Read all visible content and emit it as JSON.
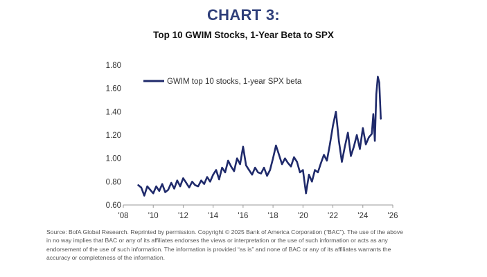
{
  "heading": "CHART 3:",
  "heading_color": "#2f3f7a",
  "source_note": "Source: BofA Global Research. Reprinted by permission. Copyright © 2025 Bank of America Corporation (“BAC”). The use of the above in no way implies that BAC or any of its affiliates endorses the views or interpretation or the use of such information or acts as any endorsement of the use of such information. The information is provided “as is” and none of BAC or any of its affiliates warrants the accuracy or completeness of the information.",
  "chart_data": {
    "type": "line",
    "title": "Top 10 GWIM Stocks, 1-Year Beta to SPX",
    "xlabel": "",
    "ylabel": "",
    "xlim": [
      2008,
      2026
    ],
    "ylim": [
      0.6,
      1.8
    ],
    "x_ticks": [
      "'08",
      "'10",
      "'12",
      "'14",
      "'16",
      "'18",
      "'20",
      "'22",
      "'24",
      "'26"
    ],
    "y_ticks": [
      "0.60",
      "0.80",
      "1.00",
      "1.20",
      "1.40",
      "1.60",
      "1.80"
    ],
    "grid": false,
    "legend_position": "top-left",
    "series": [
      {
        "name": "GWIM top 10 stocks, 1-year SPX beta",
        "color": "#1f2a6b",
        "x": [
          2009.0,
          2009.2,
          2009.4,
          2009.6,
          2009.8,
          2010.0,
          2010.2,
          2010.4,
          2010.6,
          2010.8,
          2011.0,
          2011.2,
          2011.4,
          2011.6,
          2011.8,
          2012.0,
          2012.2,
          2012.4,
          2012.6,
          2012.8,
          2013.0,
          2013.2,
          2013.4,
          2013.6,
          2013.8,
          2014.0,
          2014.2,
          2014.4,
          2014.6,
          2014.8,
          2015.0,
          2015.2,
          2015.4,
          2015.6,
          2015.8,
          2016.0,
          2016.2,
          2016.4,
          2016.6,
          2016.8,
          2017.0,
          2017.2,
          2017.4,
          2017.6,
          2017.8,
          2018.0,
          2018.2,
          2018.4,
          2018.6,
          2018.8,
          2019.0,
          2019.2,
          2019.4,
          2019.6,
          2019.8,
          2020.0,
          2020.2,
          2020.4,
          2020.6,
          2020.8,
          2021.0,
          2021.2,
          2021.4,
          2021.6,
          2021.8,
          2022.0,
          2022.2,
          2022.4,
          2022.6,
          2022.8,
          2023.0,
          2023.2,
          2023.4,
          2023.6,
          2023.8,
          2024.0,
          2024.2,
          2024.4,
          2024.6,
          2024.7,
          2024.8,
          2024.9,
          2025.0,
          2025.1,
          2025.2
        ],
        "values": [
          0.77,
          0.75,
          0.68,
          0.76,
          0.73,
          0.7,
          0.76,
          0.72,
          0.78,
          0.71,
          0.73,
          0.79,
          0.74,
          0.81,
          0.76,
          0.83,
          0.79,
          0.75,
          0.8,
          0.77,
          0.76,
          0.81,
          0.78,
          0.84,
          0.8,
          0.86,
          0.9,
          0.82,
          0.92,
          0.88,
          0.98,
          0.93,
          0.89,
          1.0,
          0.95,
          1.1,
          0.94,
          0.9,
          0.86,
          0.92,
          0.88,
          0.87,
          0.92,
          0.85,
          0.9,
          1.0,
          1.11,
          1.03,
          0.95,
          1.0,
          0.96,
          0.93,
          1.01,
          0.97,
          0.88,
          0.9,
          0.7,
          0.86,
          0.8,
          0.9,
          0.88,
          0.96,
          1.03,
          0.98,
          1.12,
          1.28,
          1.4,
          1.15,
          0.97,
          1.1,
          1.22,
          1.02,
          1.1,
          1.2,
          1.08,
          1.26,
          1.12,
          1.18,
          1.21,
          1.38,
          1.15,
          1.55,
          1.7,
          1.65,
          1.34
        ]
      }
    ]
  }
}
